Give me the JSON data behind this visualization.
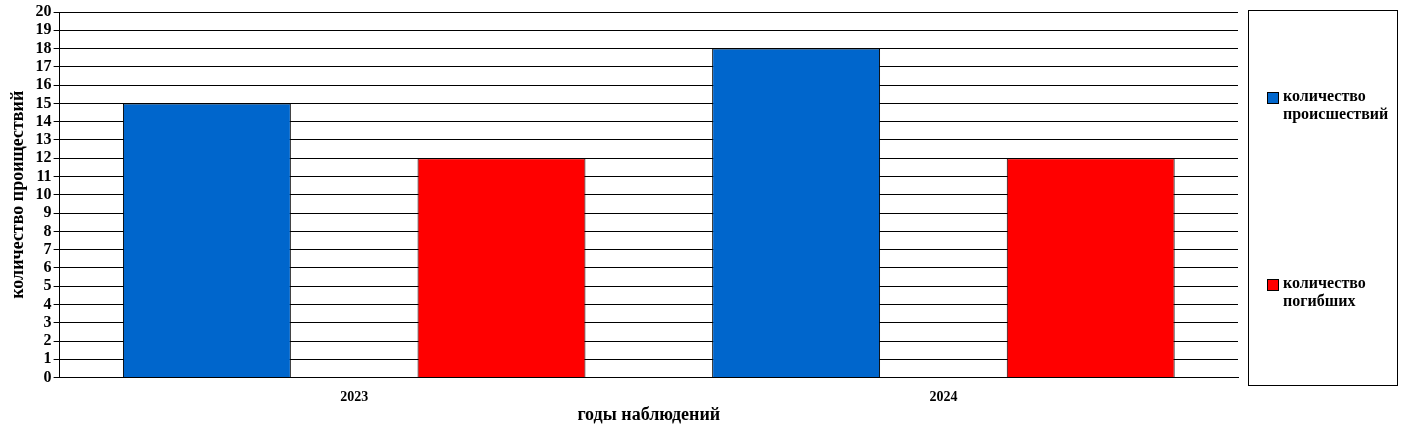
{
  "chart_data": {
    "type": "bar",
    "xlabel": "годы наблюдений",
    "ylabel": "количество проиществий",
    "categories": [
      "2023",
      "2024"
    ],
    "series": [
      {
        "name": "количество происшествий",
        "color": "#0066cc",
        "values": [
          15,
          18
        ]
      },
      {
        "name": "количество погибших",
        "color": "#ff0000",
        "values": [
          12,
          12
        ]
      }
    ],
    "ylim": [
      0,
      20
    ],
    "yticks": [
      0,
      1,
      2,
      3,
      4,
      5,
      6,
      7,
      8,
      9,
      10,
      11,
      12,
      13,
      14,
      15,
      16,
      17,
      18,
      19,
      20
    ],
    "grid": "y",
    "legend": "right"
  }
}
